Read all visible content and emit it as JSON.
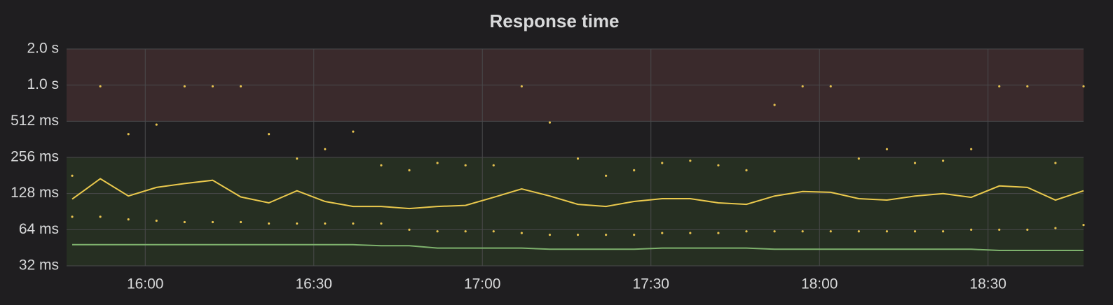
{
  "chart_data": {
    "type": "line",
    "title": "Response time",
    "x": [
      "15:47",
      "15:52",
      "15:57",
      "16:02",
      "16:07",
      "16:12",
      "16:17",
      "16:22",
      "16:27",
      "16:32",
      "16:37",
      "16:42",
      "16:47",
      "16:52",
      "16:57",
      "17:02",
      "17:07",
      "17:12",
      "17:17",
      "17:22",
      "17:27",
      "17:32",
      "17:37",
      "17:42",
      "17:47",
      "17:52",
      "17:57",
      "18:02",
      "18:07",
      "18:12",
      "18:17",
      "18:22",
      "18:27",
      "18:32",
      "18:37",
      "18:42",
      "18:47"
    ],
    "xlim": [
      "15:46",
      "18:47"
    ],
    "xticks": [
      "16:00",
      "16:30",
      "17:00",
      "17:30",
      "18:00",
      "18:30"
    ],
    "ylim": [
      32,
      2048
    ],
    "log_scale": true,
    "grid": true,
    "yticks": [
      {
        "value": 32,
        "label": "32 ms"
      },
      {
        "value": 64,
        "label": "64 ms"
      },
      {
        "value": 128,
        "label": "128 ms"
      },
      {
        "value": 256,
        "label": "256 ms"
      },
      {
        "value": 512,
        "label": "512 ms"
      },
      {
        "value": 1024,
        "label": "1.0 s"
      },
      {
        "value": 2048,
        "label": "2.0 s"
      }
    ],
    "thresholds": [
      {
        "from": 512,
        "to": 2048,
        "color": "#3a2a2c"
      },
      {
        "from": 32,
        "to": 256,
        "color": "#262f22"
      }
    ],
    "series": [
      {
        "color": "#e5c14f",
        "style": "points",
        "values": [
          180,
          1000,
          400,
          480,
          1000,
          1000,
          1000,
          400,
          250,
          300,
          420,
          220,
          200,
          230,
          220,
          220,
          1000,
          500,
          250,
          180,
          200,
          230,
          240,
          220,
          200,
          700,
          1000,
          1000,
          250,
          300,
          230,
          240,
          300,
          1000,
          1000,
          230,
          1000
        ]
      },
      {
        "color": "#eac94d",
        "style": "line",
        "values": [
          115,
          170,
          122,
          144,
          155,
          165,
          120,
          107,
          135,
          110,
          100,
          100,
          96,
          100,
          102,
          119,
          140,
          122,
          104,
          100,
          110,
          116,
          116,
          107,
          104,
          122,
          133,
          131,
          116,
          113,
          122,
          128,
          119,
          148,
          144,
          113,
          135
        ]
      },
      {
        "color": "#e5c14f",
        "style": "points",
        "values": [
          82,
          82,
          78,
          76,
          74,
          74,
          74,
          72,
          72,
          72,
          72,
          72,
          64,
          62,
          62,
          62,
          60,
          58,
          58,
          58,
          58,
          60,
          60,
          60,
          62,
          62,
          62,
          62,
          62,
          62,
          62,
          62,
          64,
          64,
          64,
          66,
          70
        ]
      },
      {
        "color": "#7eb26d",
        "style": "line",
        "values": [
          48,
          48,
          48,
          48,
          48,
          48,
          48,
          48,
          48,
          48,
          48,
          47,
          47,
          45,
          45,
          45,
          45,
          44,
          44,
          44,
          44,
          45,
          45,
          45,
          45,
          44,
          44,
          44,
          44,
          44,
          44,
          44,
          44,
          43,
          43,
          43,
          43
        ]
      }
    ]
  }
}
